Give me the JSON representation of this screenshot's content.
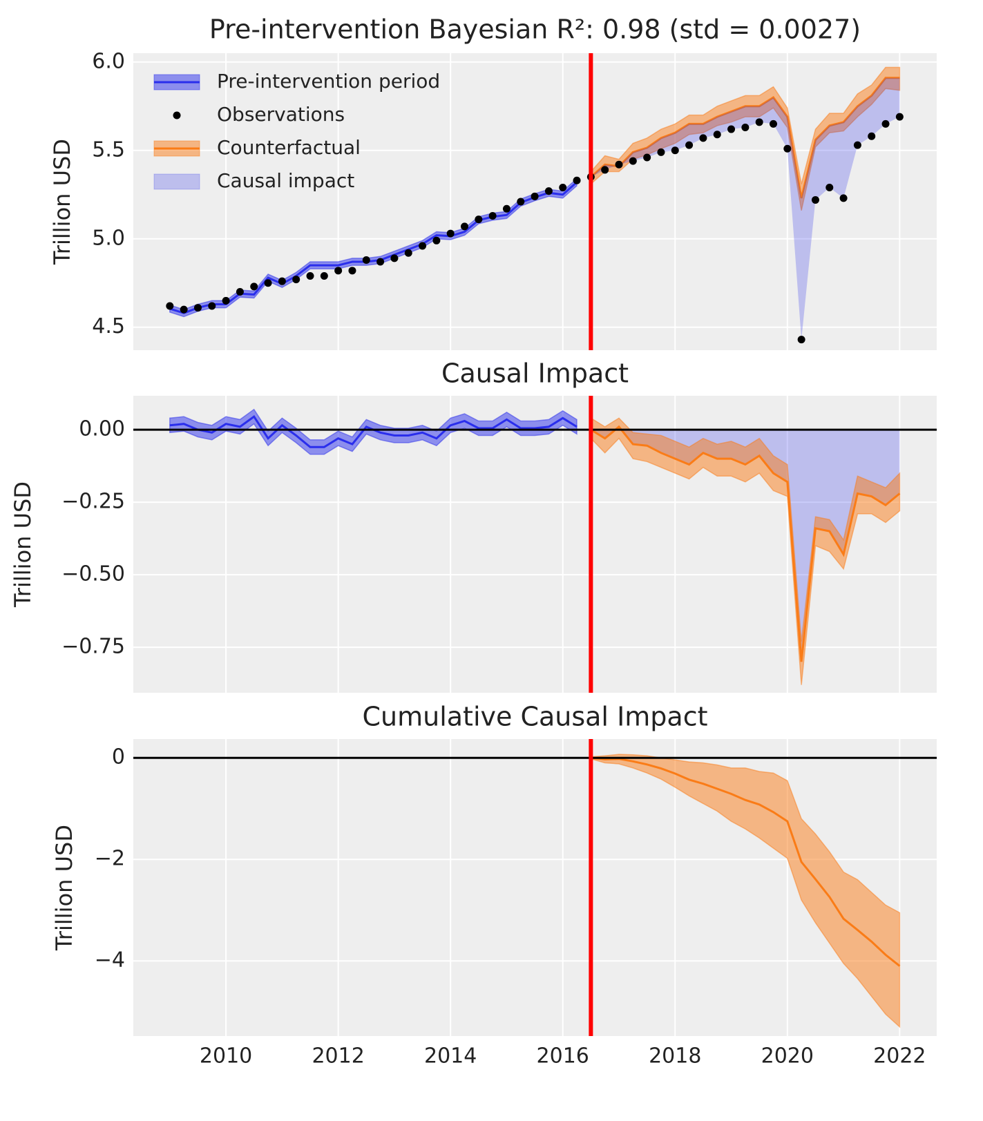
{
  "chart_data": [
    {
      "type": "line",
      "title": "Pre-intervention Bayesian R²: 0.98 (std = 0.0027)",
      "ylabel": "Trillion USD",
      "xlim": [
        2008.35,
        2022.66
      ],
      "xticks": [
        2010,
        2012,
        2014,
        2016,
        2018,
        2020,
        2022
      ],
      "ylim": [
        4.37,
        6.05
      ],
      "yticks": [
        4.5,
        {
          "value": 5,
          "label": "5.0"
        },
        5.5,
        {
          "value": 6,
          "label": "6.0"
        }
      ],
      "grid": true,
      "legend": "upper left",
      "background": "#eeeeee",
      "intervention": 2016.5,
      "intervention_color": "#ff0000",
      "series": [
        {
          "name": "Pre-intervention period",
          "color": "#2a2eec",
          "x": [
            2009,
            2009.25,
            2009.5,
            2009.75,
            2010,
            2010.25,
            2010.5,
            2010.75,
            2011,
            2011.25,
            2011.5,
            2011.75,
            2012,
            2012.25,
            2012.5,
            2012.75,
            2013,
            2013.25,
            2013.5,
            2013.75,
            2014,
            2014.25,
            2014.5,
            2014.75,
            2015,
            2015.25,
            2015.5,
            2015.75,
            2016,
            2016.25
          ],
          "values": [
            4.605,
            4.58,
            4.61,
            4.63,
            4.63,
            4.69,
            4.685,
            4.78,
            4.745,
            4.79,
            4.85,
            4.85,
            4.85,
            4.87,
            4.87,
            4.88,
            4.91,
            4.94,
            4.97,
            5.02,
            5.015,
            5.04,
            5.105,
            5.125,
            5.135,
            5.205,
            5.235,
            5.26,
            5.25,
            5.32
          ],
          "upper": [
            4.625,
            4.6,
            4.63,
            4.65,
            4.65,
            4.71,
            4.705,
            4.8,
            4.765,
            4.81,
            4.87,
            4.87,
            4.87,
            4.89,
            4.89,
            4.9,
            4.93,
            4.96,
            4.99,
            5.04,
            5.035,
            5.06,
            5.125,
            5.145,
            5.155,
            5.225,
            5.255,
            5.28,
            5.27,
            5.34
          ],
          "lower": [
            4.585,
            4.56,
            4.59,
            4.61,
            4.61,
            4.67,
            4.665,
            4.76,
            4.725,
            4.77,
            4.83,
            4.83,
            4.83,
            4.85,
            4.85,
            4.86,
            4.89,
            4.92,
            4.95,
            5.0,
            4.995,
            5.02,
            5.085,
            5.105,
            5.115,
            5.185,
            5.215,
            5.24,
            5.23,
            5.3
          ]
        },
        {
          "name": "Observations",
          "type": "scatter",
          "color": "#000000",
          "x": [
            2009,
            2009.25,
            2009.5,
            2009.75,
            2010,
            2010.25,
            2010.5,
            2010.75,
            2011,
            2011.25,
            2011.5,
            2011.75,
            2012,
            2012.25,
            2012.5,
            2012.75,
            2013,
            2013.25,
            2013.5,
            2013.75,
            2014,
            2014.25,
            2014.5,
            2014.75,
            2015,
            2015.25,
            2015.5,
            2015.75,
            2016,
            2016.25,
            2016.5,
            2016.75,
            2017,
            2017.25,
            2017.5,
            2017.75,
            2018,
            2018.25,
            2018.5,
            2018.75,
            2019,
            2019.25,
            2019.5,
            2019.75,
            2020,
            2020.25,
            2020.5,
            2020.75,
            2021,
            2021.25,
            2021.5,
            2021.75,
            2022
          ],
          "values": [
            4.62,
            4.6,
            4.61,
            4.62,
            4.65,
            4.7,
            4.73,
            4.75,
            4.76,
            4.77,
            4.79,
            4.79,
            4.82,
            4.82,
            4.88,
            4.87,
            4.89,
            4.92,
            4.96,
            4.99,
            5.03,
            5.07,
            5.11,
            5.13,
            5.17,
            5.21,
            5.24,
            5.27,
            5.29,
            5.33,
            5.35,
            5.39,
            5.42,
            5.44,
            5.46,
            5.49,
            5.5,
            5.53,
            5.57,
            5.59,
            5.62,
            5.63,
            5.66,
            5.65,
            5.51,
            4.43,
            5.22,
            5.29,
            5.23,
            5.53,
            5.58,
            5.65,
            5.69
          ]
        },
        {
          "name": "Counterfactual",
          "color": "#fa7c17",
          "x": [
            2016.5,
            2016.75,
            2017,
            2017.25,
            2017.5,
            2017.75,
            2018,
            2018.25,
            2018.5,
            2018.75,
            2019,
            2019.25,
            2019.5,
            2019.75,
            2020,
            2020.25,
            2020.5,
            2020.75,
            2021,
            2021.25,
            2021.5,
            2021.75,
            2022
          ],
          "values": [
            5.35,
            5.42,
            5.41,
            5.49,
            5.515,
            5.57,
            5.6,
            5.65,
            5.65,
            5.69,
            5.72,
            5.75,
            5.75,
            5.8,
            5.69,
            5.23,
            5.56,
            5.64,
            5.66,
            5.75,
            5.81,
            5.91,
            5.91
          ],
          "upper": [
            5.38,
            5.47,
            5.45,
            5.54,
            5.57,
            5.62,
            5.65,
            5.7,
            5.7,
            5.75,
            5.78,
            5.81,
            5.81,
            5.86,
            5.74,
            5.31,
            5.62,
            5.71,
            5.71,
            5.82,
            5.87,
            5.97,
            5.97
          ],
          "lower": [
            5.31,
            5.38,
            5.38,
            5.45,
            5.475,
            5.51,
            5.54,
            5.59,
            5.6,
            5.64,
            5.66,
            5.69,
            5.69,
            5.74,
            5.63,
            5.16,
            5.52,
            5.6,
            5.61,
            5.69,
            5.76,
            5.85,
            5.84
          ]
        },
        {
          "name": "Causal impact",
          "color": "#2a2eec"
        }
      ]
    },
    {
      "type": "line",
      "title": "Causal Impact",
      "ylabel": "Trillion USD",
      "xlim": [
        2008.35,
        2022.66
      ],
      "xticks": [
        2010,
        2012,
        2014,
        2016,
        2018,
        2020,
        2022
      ],
      "ylim": [
        -0.907,
        0.117
      ],
      "yticks": [
        {
          "value": 0,
          "label": "0.00"
        },
        {
          "value": -0.25,
          "label": "−0.25"
        },
        {
          "value": -0.5,
          "label": "−0.50"
        },
        {
          "value": -0.75,
          "label": "−0.75"
        }
      ],
      "grid": true,
      "background": "#eeeeee",
      "intervention": 2016.5,
      "intervention_color": "#ff0000",
      "hline": 0,
      "series": [
        {
          "color": "#2a2eec",
          "x": [
            2009,
            2009.25,
            2009.5,
            2009.75,
            2010,
            2010.25,
            2010.5,
            2010.75,
            2011,
            2011.25,
            2011.5,
            2011.75,
            2012,
            2012.25,
            2012.5,
            2012.75,
            2013,
            2013.25,
            2013.5,
            2013.75,
            2014,
            2014.25,
            2014.5,
            2014.75,
            2015,
            2015.25,
            2015.5,
            2015.75,
            2016,
            2016.25
          ],
          "values": [
            0.015,
            0.02,
            0,
            -0.01,
            0.02,
            0.01,
            0.045,
            -0.03,
            0.015,
            -0.02,
            -0.06,
            -0.06,
            -0.03,
            -0.05,
            0.01,
            -0.01,
            -0.02,
            -0.02,
            -0.01,
            -0.03,
            0.015,
            0.03,
            0.005,
            0.005,
            0.035,
            0.005,
            0.005,
            0.01,
            0.04,
            0.01
          ],
          "upper": [
            0.04,
            0.045,
            0.025,
            0.015,
            0.045,
            0.035,
            0.07,
            -0.005,
            0.04,
            0.005,
            -0.035,
            -0.035,
            -0.005,
            -0.025,
            0.035,
            0.015,
            0.005,
            0.005,
            0.015,
            -0.005,
            0.04,
            0.055,
            0.03,
            0.03,
            0.06,
            0.03,
            0.03,
            0.035,
            0.065,
            0.035
          ],
          "lower": [
            -0.01,
            -0.005,
            -0.025,
            -0.035,
            -0.005,
            -0.015,
            0.02,
            -0.055,
            -0.01,
            -0.045,
            -0.085,
            -0.085,
            -0.055,
            -0.075,
            -0.015,
            -0.035,
            -0.045,
            -0.045,
            -0.035,
            -0.055,
            -0.01,
            0.005,
            -0.02,
            -0.02,
            0.01,
            -0.02,
            -0.02,
            -0.015,
            0.015,
            -0.015
          ]
        },
        {
          "color": "#fa7c17",
          "fill": "#2a2eec",
          "x": [
            2016.5,
            2016.75,
            2017,
            2017.25,
            2017.5,
            2017.75,
            2018,
            2018.25,
            2018.5,
            2018.75,
            2019,
            2019.25,
            2019.5,
            2019.75,
            2020,
            2020.25,
            2020.5,
            2020.75,
            2021,
            2021.25,
            2021.5,
            2021.75,
            2022
          ],
          "values": [
            0,
            -0.03,
            0.01,
            -0.05,
            -0.055,
            -0.08,
            -0.1,
            -0.12,
            -0.08,
            -0.1,
            -0.1,
            -0.12,
            -0.09,
            -0.15,
            -0.18,
            -0.8,
            -0.34,
            -0.35,
            -0.43,
            -0.22,
            -0.23,
            -0.26,
            -0.22
          ],
          "upper": [
            0.04,
            0.01,
            0.04,
            -0.01,
            -0.015,
            -0.02,
            -0.04,
            -0.06,
            -0.03,
            -0.05,
            -0.04,
            -0.06,
            -0.03,
            -0.09,
            -0.12,
            -0.73,
            -0.3,
            -0.31,
            -0.38,
            -0.16,
            -0.18,
            -0.2,
            -0.15
          ],
          "lower": [
            -0.03,
            -0.08,
            -0.03,
            -0.1,
            -0.11,
            -0.13,
            -0.15,
            -0.17,
            -0.13,
            -0.16,
            -0.16,
            -0.18,
            -0.15,
            -0.21,
            -0.23,
            -0.88,
            -0.4,
            -0.42,
            -0.48,
            -0.29,
            -0.29,
            -0.32,
            -0.28
          ]
        }
      ]
    },
    {
      "type": "line",
      "title": "Cumulative Causal Impact",
      "ylabel": "Trillion USD",
      "xlim": [
        2008.35,
        2022.66
      ],
      "xticks": [
        2010,
        2012,
        2014,
        2016,
        2018,
        2020,
        2022
      ],
      "ylim": [
        -5.48,
        0.37
      ],
      "yticks": [
        0,
        {
          "value": -2,
          "label": "−2"
        },
        {
          "value": -4,
          "label": "−4"
        }
      ],
      "grid": true,
      "background": "#eeeeee",
      "intervention": 2016.5,
      "intervention_color": "#ff0000",
      "hline": 0,
      "series": [
        {
          "color": "#fa7c17",
          "x": [
            2016.5,
            2016.75,
            2017,
            2017.25,
            2017.5,
            2017.75,
            2018,
            2018.25,
            2018.5,
            2018.75,
            2019,
            2019.25,
            2019.5,
            2019.75,
            2020,
            2020.25,
            2020.5,
            2020.75,
            2021,
            2021.25,
            2021.5,
            2021.75,
            2022
          ],
          "values": [
            0,
            -0.03,
            -0.02,
            -0.07,
            -0.13,
            -0.21,
            -0.31,
            -0.43,
            -0.51,
            -0.61,
            -0.71,
            -0.83,
            -0.92,
            -1.07,
            -1.25,
            -2.05,
            -2.39,
            -2.74,
            -3.17,
            -3.39,
            -3.62,
            -3.88,
            -4.1
          ],
          "upper": [
            0.02,
            0.04,
            0.07,
            0.06,
            0.04,
            0,
            -0.04,
            -0.08,
            -0.1,
            -0.14,
            -0.2,
            -0.2,
            -0.27,
            -0.3,
            -0.45,
            -1.2,
            -1.5,
            -1.85,
            -2.25,
            -2.4,
            -2.65,
            -2.9,
            -3.05
          ],
          "lower": [
            -0.02,
            -0.1,
            -0.12,
            -0.2,
            -0.3,
            -0.42,
            -0.58,
            -0.75,
            -0.9,
            -1.05,
            -1.25,
            -1.4,
            -1.58,
            -1.78,
            -1.98,
            -2.8,
            -3.25,
            -3.65,
            -4.05,
            -4.35,
            -4.7,
            -5.05,
            -5.3
          ]
        }
      ]
    }
  ]
}
